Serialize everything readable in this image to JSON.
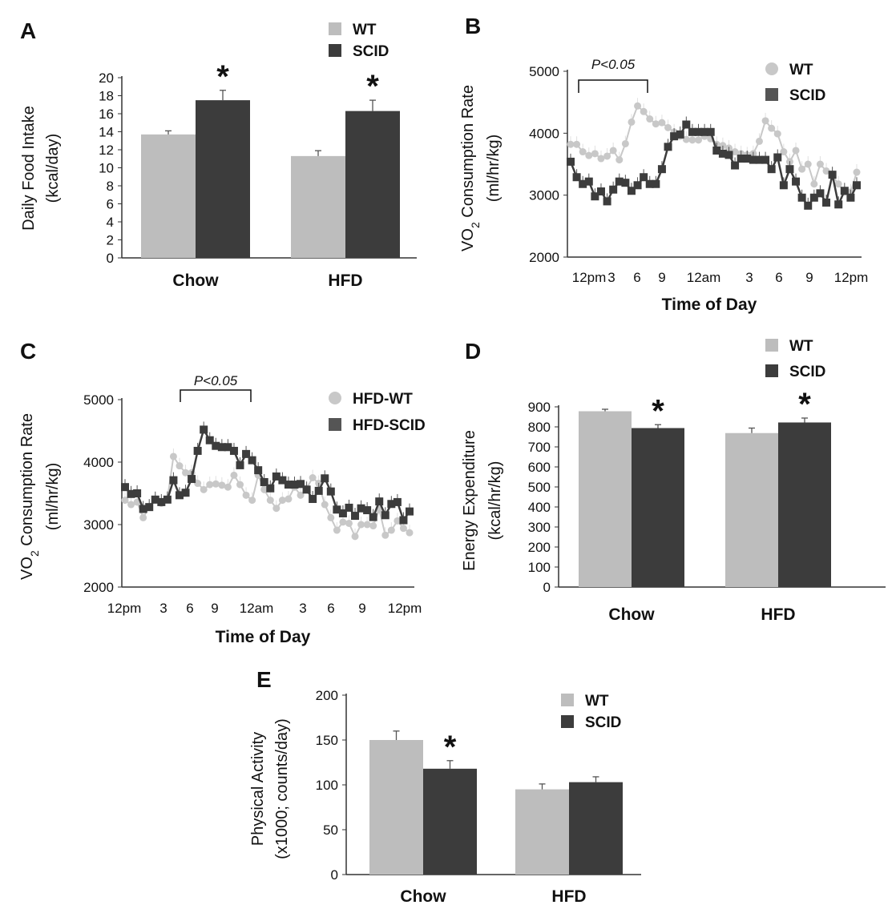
{
  "colors": {
    "wt": "#bdbdbd",
    "scid": "#3c3c3c",
    "axis": "#333333"
  },
  "chart_data": [
    {
      "panel": "A",
      "type": "bar",
      "categories": [
        "Chow",
        "HFD"
      ],
      "series": [
        {
          "name": "WT",
          "values": [
            13.7,
            11.3
          ],
          "errors": [
            0.4,
            0.6
          ]
        },
        {
          "name": "SCID",
          "values": [
            17.5,
            16.3
          ],
          "errors": [
            1.1,
            1.2
          ]
        }
      ],
      "ylabel": [
        "Daily Food Intake",
        "(kcal/day)"
      ],
      "ylim": [
        0,
        20
      ],
      "yticks": [
        "0",
        "2",
        "4",
        "6",
        "8",
        "10",
        "12",
        "14",
        "16",
        "18",
        "20"
      ],
      "significance": [
        "*",
        "*"
      ],
      "significant_series": "SCID",
      "legend": "top-right",
      "grid": false
    },
    {
      "panel": "B",
      "type": "line",
      "series": [
        {
          "name": "WT",
          "marker": "circle",
          "values": [
            3820,
            3820,
            3700,
            3640,
            3670,
            3590,
            3630,
            3720,
            3570,
            3830,
            4180,
            4440,
            4350,
            4230,
            4150,
            4170,
            4090,
            4020,
            3950,
            3900,
            3890,
            3890,
            3950,
            3910,
            3820,
            3800,
            3760,
            3700,
            3670,
            3650,
            3670,
            3870,
            4200,
            4080,
            3990,
            3700,
            3540,
            3720,
            3420,
            3500,
            3180,
            3500,
            3390,
            3310,
            3180,
            3050,
            3050,
            3370
          ]
        },
        {
          "name": "SCID",
          "marker": "square",
          "values": [
            3540,
            3290,
            3180,
            3220,
            2980,
            3060,
            2900,
            3090,
            3220,
            3200,
            3070,
            3160,
            3290,
            3180,
            3180,
            3420,
            3780,
            3950,
            3980,
            4140,
            4020,
            4020,
            4020,
            4020,
            3720,
            3670,
            3650,
            3480,
            3590,
            3590,
            3570,
            3570,
            3570,
            3420,
            3610,
            3160,
            3420,
            3220,
            2960,
            2830,
            2960,
            3030,
            2880,
            3330,
            2850,
            3070,
            2960,
            3160
          ]
        }
      ],
      "ylabel": [
        "VO",
        "2",
        " Consumption Rate",
        "(ml/hr/kg)"
      ],
      "xlabel": "Time of Day",
      "xticks": [
        "12pm",
        "3",
        "6",
        "9",
        "12am",
        "3",
        "6",
        "9",
        "12pm"
      ],
      "ylim": [
        2000,
        5000
      ],
      "yticks": [
        "2000",
        "3000",
        "4000",
        "5000"
      ],
      "annotation": "P<0.05",
      "legend": "top-right",
      "grid": false
    },
    {
      "panel": "C",
      "type": "line",
      "series": [
        {
          "name": "HFD-WT",
          "marker": "circle",
          "values": [
            3390,
            3320,
            3360,
            3110,
            3280,
            3390,
            3340,
            3410,
            4090,
            3940,
            3830,
            3830,
            3660,
            3560,
            3640,
            3650,
            3630,
            3600,
            3790,
            3640,
            3470,
            3390,
            3790,
            3560,
            3390,
            3260,
            3390,
            3410,
            3600,
            3470,
            3580,
            3750,
            3660,
            3320,
            3110,
            2910,
            3040,
            3020,
            2810,
            3000,
            3000,
            2980,
            3240,
            2830,
            2910,
            3060,
            2940,
            2870
          ]
        },
        {
          "name": "HFD-SCID",
          "marker": "square",
          "values": [
            3600,
            3490,
            3500,
            3250,
            3280,
            3400,
            3360,
            3400,
            3710,
            3470,
            3510,
            3730,
            4180,
            4520,
            4350,
            4260,
            4240,
            4240,
            4180,
            3950,
            4130,
            4030,
            3870,
            3680,
            3580,
            3770,
            3710,
            3640,
            3640,
            3650,
            3560,
            3410,
            3540,
            3740,
            3530,
            3240,
            3180,
            3270,
            3140,
            3260,
            3230,
            3120,
            3370,
            3150,
            3330,
            3360,
            3070,
            3210
          ]
        }
      ],
      "ylabel": [
        "VO",
        "2",
        " Consumption Rate",
        "(ml/hr/kg)"
      ],
      "xlabel": "Time of Day",
      "xticks": [
        "12pm",
        "3",
        "6",
        "9",
        "12am",
        "3",
        "6",
        "9",
        "12pm"
      ],
      "ylim": [
        2000,
        5000
      ],
      "yticks": [
        "2000",
        "3000",
        "4000",
        "5000"
      ],
      "annotation": "P<0.05",
      "legend": "top-right",
      "grid": false
    },
    {
      "panel": "D",
      "type": "bar",
      "categories": [
        "Chow",
        "HFD"
      ],
      "series": [
        {
          "name": "WT",
          "values": [
            878,
            769
          ],
          "errors": [
            10,
            25
          ]
        },
        {
          "name": "SCID",
          "values": [
            794,
            822
          ],
          "errors": [
            17,
            22
          ]
        }
      ],
      "ylabel": [
        "Energy Expenditure",
        "(kcal/hr/kg)"
      ],
      "ylim": [
        0,
        900
      ],
      "yticks": [
        "0",
        "100",
        "200",
        "300",
        "400",
        "500",
        "600",
        "700",
        "800",
        "900"
      ],
      "significance": [
        "*",
        "*"
      ],
      "significant_series": "SCID",
      "legend": "top-right",
      "grid": false
    },
    {
      "panel": "E",
      "type": "bar",
      "categories": [
        "Chow",
        "HFD"
      ],
      "series": [
        {
          "name": "WT",
          "values": [
            150,
            95
          ],
          "errors": [
            10,
            6
          ]
        },
        {
          "name": "SCID",
          "values": [
            118,
            103
          ],
          "errors": [
            9,
            6
          ]
        }
      ],
      "ylabel": [
        "Physical Activity",
        "(x1000; counts/day)"
      ],
      "ylim": [
        0,
        200
      ],
      "yticks": [
        "0",
        "50",
        "100",
        "150",
        "200"
      ],
      "significance": [
        "*",
        ""
      ],
      "significant_series": "SCID",
      "legend": "top-right",
      "grid": false
    }
  ]
}
